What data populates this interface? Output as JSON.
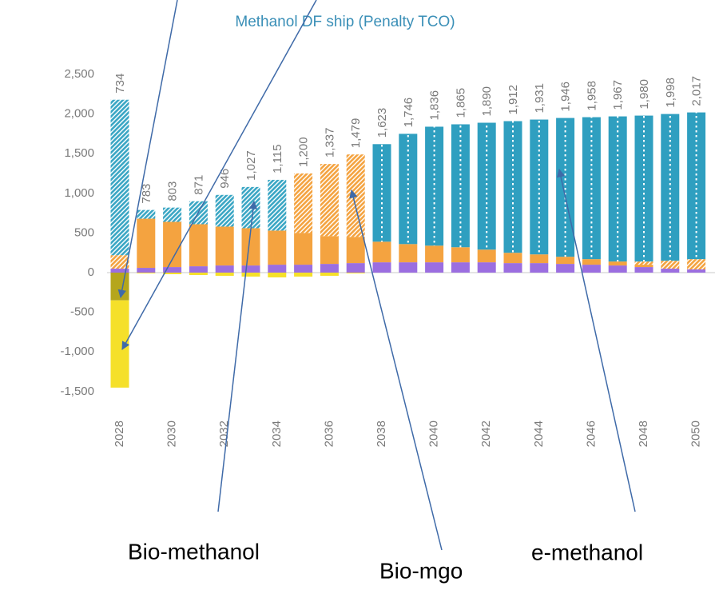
{
  "chart_data": {
    "type": "stacked_bar",
    "title": "Methanol DF ship (Penalty TCO)",
    "categories": [
      "2028",
      null,
      "2030",
      null,
      "2032",
      null,
      "2034",
      null,
      "2036",
      null,
      "2038",
      null,
      "2040",
      null,
      "2042",
      null,
      "2044",
      null,
      "2046",
      null,
      "2048",
      null,
      "2050"
    ],
    "ylim": [
      -1500,
      2700
    ],
    "yticks": [
      {
        "value": 2500,
        "label": "2,500"
      },
      {
        "value": 2000,
        "label": "2,000"
      },
      {
        "value": 1500,
        "label": "1,500"
      },
      {
        "value": 1000,
        "label": "1,000"
      },
      500,
      0,
      -500,
      {
        "value": -1000,
        "label": "-1,000"
      },
      {
        "value": -1500,
        "label": "-1,500"
      }
    ],
    "series": [
      {
        "color": "#9b6ee0",
        "pattern": "solid",
        "values": [
          50,
          60,
          70,
          80,
          90,
          90,
          100,
          100,
          110,
          120,
          130,
          130,
          130,
          130,
          130,
          120,
          120,
          110,
          100,
          90,
          70,
          50,
          40
        ]
      },
      {
        "color": "#f4a340",
        "pattern": "solid",
        "values": [
          0,
          620,
          570,
          530,
          490,
          470,
          430,
          400,
          350,
          330,
          260,
          230,
          210,
          190,
          160,
          130,
          110,
          90,
          70,
          50,
          30,
          0,
          0
        ]
      },
      {
        "name": "Bio-mgo",
        "color": "#f4a340",
        "pattern": "hatch",
        "values": [
          170,
          0,
          0,
          0,
          0,
          0,
          0,
          750,
          910,
          1040,
          0,
          0,
          0,
          0,
          0,
          0,
          0,
          0,
          0,
          0,
          40,
          100,
          130
        ]
      },
      {
        "name": "Bio-methanol",
        "color": "#3aa6c4",
        "pattern": "hatch",
        "values": [
          1960,
          110,
          180,
          290,
          400,
          520,
          640,
          0,
          0,
          0,
          0,
          0,
          0,
          0,
          0,
          0,
          0,
          0,
          0,
          0,
          0,
          0,
          0
        ]
      },
      {
        "name": "e-methanol",
        "color": "#2f9fc0",
        "pattern": "dots",
        "values": [
          0,
          0,
          0,
          0,
          0,
          0,
          0,
          0,
          0,
          0,
          1230,
          1390,
          1500,
          1550,
          1600,
          1660,
          1700,
          1750,
          1790,
          1830,
          1840,
          1850,
          1850
        ]
      },
      {
        "color": "#b5a61c",
        "pattern": "solid",
        "values": [
          -350,
          0,
          0,
          0,
          0,
          0,
          0,
          0,
          0,
          0,
          0,
          0,
          0,
          0,
          0,
          0,
          0,
          0,
          0,
          0,
          0,
          0,
          0
        ]
      },
      {
        "color": "#f5e02a",
        "pattern": "solid",
        "values": [
          -1100,
          -10,
          -20,
          -30,
          -40,
          -50,
          -60,
          -50,
          -40,
          -10,
          0,
          0,
          0,
          0,
          0,
          0,
          0,
          0,
          0,
          0,
          0,
          0,
          0
        ]
      }
    ],
    "totals": {
      "values": [
        734,
        783,
        803,
        871,
        946,
        1027,
        1115,
        1200,
        1337,
        1479,
        1623,
        1746,
        1836,
        1865,
        1890,
        1912,
        1931,
        1946,
        1958,
        1967,
        1980,
        1998,
        2017
      ],
      "value_labels": [
        "734",
        "783",
        "803",
        "871",
        "946",
        "1,027",
        "1,115",
        "1,200",
        "1,337",
        "1,479",
        "1,623",
        "1,746",
        "1,836",
        "1,865",
        "1,890",
        "1,912",
        "1,931",
        "1,946",
        "1,958",
        "1,967",
        "1,980",
        "1,998",
        "2,017"
      ]
    },
    "annotations": [
      "Bio-methanol",
      "Bio-mgo",
      "e-methanol"
    ]
  }
}
